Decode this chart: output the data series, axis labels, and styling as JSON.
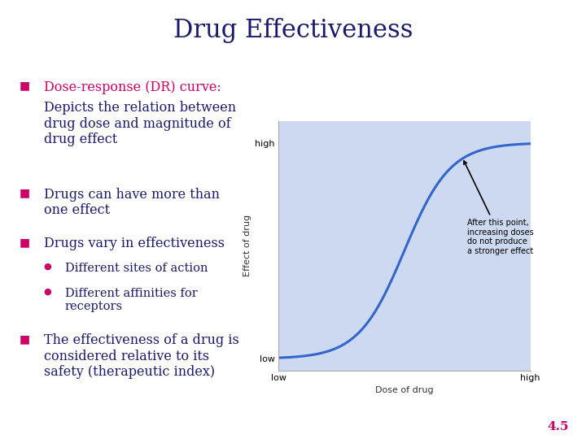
{
  "title": "Drug Effectiveness",
  "title_color": "#1a1a6e",
  "title_fontsize": 22,
  "bg_color": "#ffffff",
  "header_bar_color": "#1a1a8e",
  "header_bar2_color": "#008080",
  "bullet_color": "#cc0066",
  "text_color": "#1a1a6e",
  "page_num": "4.5",
  "page_num_color": "#cc0066",
  "chart_bg": "#ccd9f0",
  "curve_color": "#3366cc",
  "annotation_text": "After this point,\nincreasing doses\ndo not produce\na stronger effect",
  "ylabel": "Effect of drug",
  "xlabel": "Dose of drug",
  "y_low": "low",
  "y_high": "high",
  "x_low": "low",
  "x_high": "high"
}
